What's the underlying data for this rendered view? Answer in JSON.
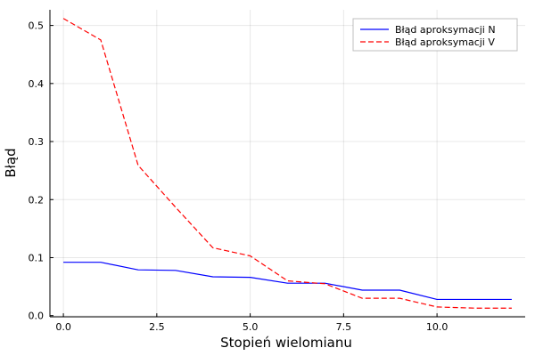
{
  "chart_data": {
    "type": "line",
    "title": "",
    "xlabel": "Stopień wielomianu",
    "ylabel": "Błąd",
    "xlim": [
      -0.36,
      12.36
    ],
    "ylim": [
      -0.002,
      0.527
    ],
    "xticks": [
      0,
      2.5,
      5,
      7.5,
      10
    ],
    "xtick_labels": [
      "0.0",
      "2.5",
      "5.0",
      "7.5",
      "10.0"
    ],
    "yticks": [
      0,
      0.1,
      0.2,
      0.3,
      0.4,
      0.5
    ],
    "ytick_labels": [
      "0.0",
      "0.1",
      "0.2",
      "0.3",
      "0.4",
      "0.5"
    ],
    "grid": true,
    "legend_position": "top-right",
    "x": [
      0,
      1,
      2,
      3,
      4,
      5,
      6,
      7,
      8,
      9,
      10,
      11,
      12
    ],
    "series": [
      {
        "name": "Błąd aproksymacji N",
        "color": "#0000ff",
        "dash": "solid",
        "values": [
          0.092,
          0.092,
          0.079,
          0.078,
          0.067,
          0.066,
          0.056,
          0.056,
          0.044,
          0.044,
          0.028,
          0.028,
          0.028
        ]
      },
      {
        "name": "Błąd aproksymacji V",
        "color": "#ff0000",
        "dash": "dashed",
        "values": [
          0.512,
          0.475,
          0.259,
          0.187,
          0.117,
          0.103,
          0.06,
          0.055,
          0.03,
          0.03,
          0.015,
          0.013,
          0.013
        ]
      }
    ]
  }
}
